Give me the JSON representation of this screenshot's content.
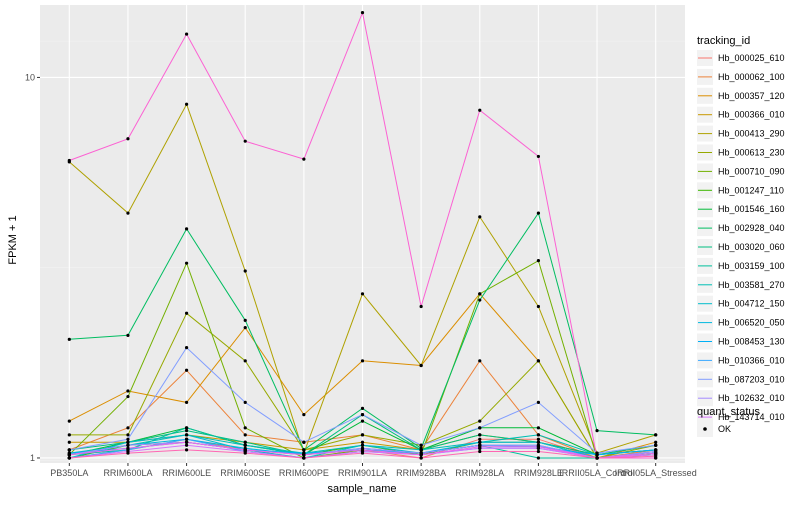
{
  "chart_data": {
    "type": "line",
    "xlabel": "sample_name",
    "ylabel": "FPKM + 1",
    "y_scale": "log10",
    "ylim": [
      0.97,
      15.5
    ],
    "y_ticks": [
      1,
      10
    ],
    "grid": true,
    "categories": [
      "PB350LA",
      "RRIM600LA",
      "RRIM600LE",
      "RRIM600SE",
      "RRIM600PE",
      "RRIM901LA",
      "RRIM928BA",
      "RRIM928LA",
      "RRIM928LE",
      "IRRII05LA_Control",
      "IRRII05LA_Stressed"
    ],
    "legend": {
      "title": "tracking_id",
      "position": "right",
      "shape_title": "quant_status",
      "shape_label": "OK"
    },
    "series": [
      {
        "name": "Hb_000025_610",
        "color": "#F8766D",
        "values": [
          1.0,
          1.05,
          1.12,
          1.05,
          1.0,
          1.05,
          1.0,
          1.12,
          1.12,
          1.0,
          1.0
        ]
      },
      {
        "name": "Hb_000062_100",
        "color": "#EC8239",
        "values": [
          1.05,
          1.2,
          1.7,
          1.15,
          1.1,
          1.15,
          1.05,
          1.8,
          1.15,
          1.0,
          1.05
        ]
      },
      {
        "name": "Hb_000357_120",
        "color": "#DB8E00",
        "values": [
          1.25,
          1.5,
          1.4,
          2.2,
          1.3,
          1.8,
          1.75,
          2.7,
          1.8,
          1.0,
          1.1
        ]
      },
      {
        "name": "Hb_000366_010",
        "color": "#C79800",
        "values": [
          1.1,
          1.1,
          1.15,
          1.1,
          1.05,
          1.1,
          1.05,
          1.15,
          1.1,
          1.02,
          1.08
        ]
      },
      {
        "name": "Hb_000413_290",
        "color": "#AFA100",
        "values": [
          6.0,
          4.4,
          8.5,
          3.1,
          1.03,
          2.7,
          1.75,
          4.3,
          2.5,
          1.03,
          1.15
        ]
      },
      {
        "name": "Hb_000613_230",
        "color": "#96A900",
        "values": [
          1.15,
          1.15,
          2.4,
          1.8,
          1.05,
          1.15,
          1.08,
          1.25,
          1.8,
          1.0,
          1.08
        ]
      },
      {
        "name": "Hb_000710_090",
        "color": "#72B000",
        "values": [
          1.02,
          1.45,
          3.25,
          1.2,
          1.0,
          1.05,
          1.02,
          2.7,
          3.3,
          1.0,
          1.03
        ]
      },
      {
        "name": "Hb_001247_110",
        "color": "#3BB600",
        "values": [
          1.0,
          1.08,
          1.1,
          1.05,
          1.02,
          1.08,
          1.02,
          1.1,
          1.1,
          1.0,
          1.02
        ]
      },
      {
        "name": "Hb_001546_160",
        "color": "#00BA38",
        "values": [
          1.02,
          1.1,
          1.2,
          1.08,
          1.02,
          1.25,
          1.05,
          1.2,
          1.2,
          1.02,
          1.05
        ]
      },
      {
        "name": "Hb_002928_040",
        "color": "#00BD61",
        "values": [
          2.05,
          2.1,
          4.0,
          2.3,
          1.05,
          1.35,
          1.06,
          2.6,
          4.4,
          1.18,
          1.15
        ]
      },
      {
        "name": "Hb_003020_060",
        "color": "#00BF80",
        "values": [
          1.05,
          1.1,
          1.18,
          1.1,
          1.02,
          1.3,
          1.05,
          1.15,
          1.1,
          1.02,
          1.08
        ]
      },
      {
        "name": "Hb_003159_100",
        "color": "#00C09C",
        "values": [
          1.02,
          1.05,
          1.2,
          1.08,
          1.02,
          1.05,
          1.03,
          1.08,
          1.0,
          1.0,
          1.03
        ]
      },
      {
        "name": "Hb_003581_270",
        "color": "#00BFB5",
        "values": [
          1.03,
          1.08,
          1.15,
          1.08,
          1.03,
          1.08,
          1.05,
          1.1,
          1.15,
          1.02,
          1.05
        ]
      },
      {
        "name": "Hb_004712_150",
        "color": "#00BCCB",
        "values": [
          1.0,
          1.1,
          1.15,
          1.05,
          1.0,
          1.08,
          1.03,
          1.08,
          1.08,
          1.0,
          1.03
        ]
      },
      {
        "name": "Hb_006520_050",
        "color": "#00B8DF",
        "values": [
          1.02,
          1.08,
          1.12,
          1.06,
          1.02,
          1.06,
          1.03,
          1.1,
          1.1,
          1.0,
          1.04
        ]
      },
      {
        "name": "Hb_008453_130",
        "color": "#00B0F6",
        "values": [
          1.03,
          1.06,
          1.1,
          1.05,
          1.03,
          1.05,
          1.03,
          1.08,
          1.07,
          1.02,
          1.05
        ]
      },
      {
        "name": "Hb_010366_010",
        "color": "#3AA8FF",
        "values": [
          1.0,
          1.05,
          1.12,
          1.04,
          1.0,
          1.04,
          1.02,
          1.06,
          1.06,
          1.0,
          1.03
        ]
      },
      {
        "name": "Hb_087203_010",
        "color": "#819DFF",
        "values": [
          1.05,
          1.12,
          1.95,
          1.4,
          1.1,
          1.3,
          1.08,
          1.2,
          1.4,
          1.03,
          1.08
        ]
      },
      {
        "name": "Hb_102632_010",
        "color": "#A58AFF",
        "values": [
          1.02,
          1.08,
          1.1,
          1.05,
          1.02,
          1.06,
          1.03,
          1.08,
          1.08,
          1.0,
          1.04
        ]
      },
      {
        "name": "Hb_143714_010",
        "color": "#D774FD",
        "values": [
          1.0,
          1.04,
          1.08,
          1.04,
          1.0,
          1.04,
          1.02,
          1.06,
          1.06,
          1.0,
          1.02
        ]
      },
      {
        "name": "",
        "color": "#F066EA",
        "values": [
          1.02,
          1.06,
          1.1,
          1.05,
          1.02,
          1.05,
          1.02,
          1.07,
          1.07,
          1.0,
          1.03
        ]
      },
      {
        "name": "",
        "color": "#FC61D3",
        "values": [
          6.05,
          6.9,
          13.0,
          6.8,
          6.1,
          14.8,
          2.5,
          8.2,
          6.2,
          1.0,
          1.0
        ]
      },
      {
        "name": "",
        "color": "#FF67B3",
        "values": [
          1.0,
          1.03,
          1.05,
          1.03,
          1.0,
          1.03,
          1.0,
          1.04,
          1.04,
          1.0,
          1.01
        ]
      }
    ]
  }
}
